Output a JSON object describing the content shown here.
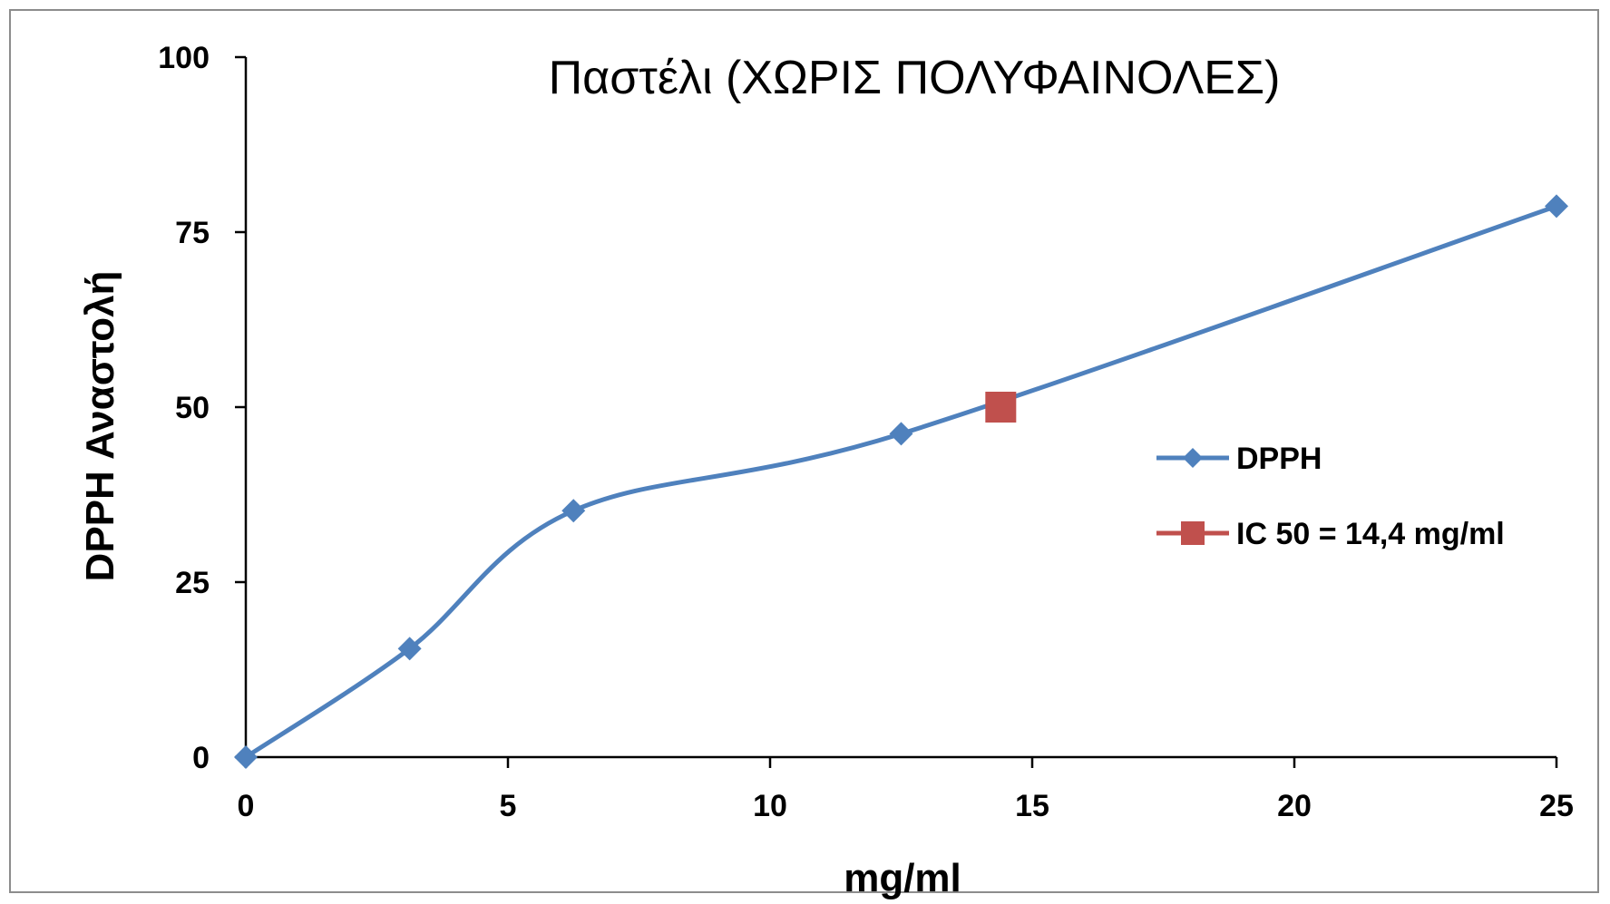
{
  "chart_data": {
    "type": "line",
    "title": "Παστέλι (ΧΩΡΙΣ ΠΟΛΥΦΑΙΝΟΛΕΣ)",
    "xlabel": "mg/ml",
    "ylabel": "DPPH Αναστολή",
    "xlim": [
      0,
      25
    ],
    "ylim": [
      0,
      100
    ],
    "x_ticks": [
      0,
      5,
      10,
      15,
      20,
      25
    ],
    "y_ticks": [
      0,
      25,
      50,
      75,
      100
    ],
    "grid": false,
    "legend_position": "right",
    "series": [
      {
        "name": "DPPH",
        "color": "#4f81bd",
        "marker": "diamond",
        "smooth": true,
        "x": [
          0,
          3.125,
          6.25,
          12.5,
          25
        ],
        "y": [
          0,
          15.5,
          35.2,
          46.2,
          78.7
        ]
      },
      {
        "name": "IC 50 = 14,4 mg/ml",
        "color": "#c0504d",
        "marker": "square",
        "x": [
          14.4
        ],
        "y": [
          50
        ]
      }
    ]
  }
}
